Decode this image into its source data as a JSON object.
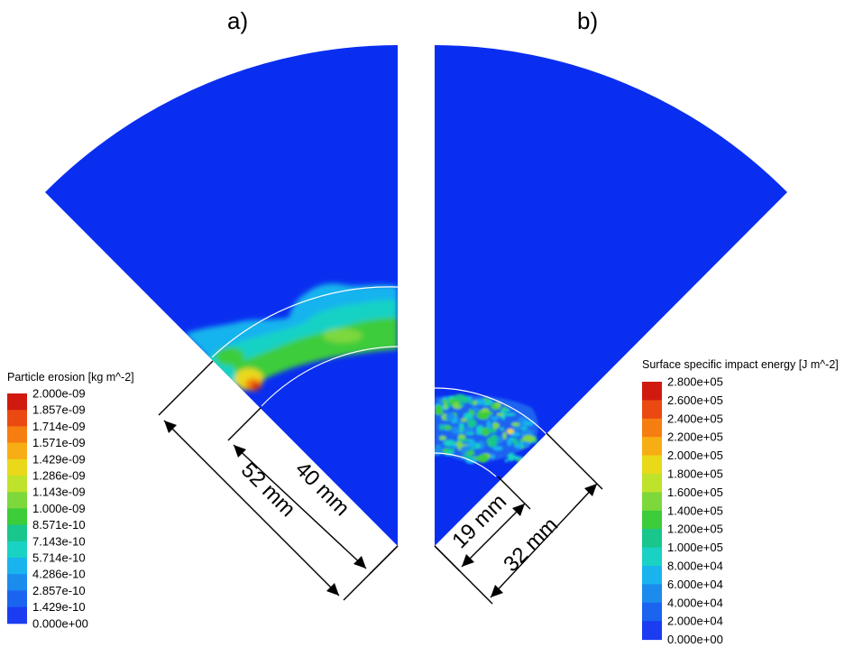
{
  "panels": [
    {
      "id": "a",
      "label": "a)",
      "dimensions": [
        {
          "text": "52 mm"
        },
        {
          "text": "40 mm"
        }
      ],
      "legend": {
        "title": "Particle erosion [kg m^-2]",
        "levels": [
          "2.000e-09",
          "1.857e-09",
          "1.714e-09",
          "1.571e-09",
          "1.429e-09",
          "1.286e-09",
          "1.143e-09",
          "1.000e-09",
          "8.571e-10",
          "7.143e-10",
          "5.714e-10",
          "4.286e-10",
          "2.857e-10",
          "1.429e-10",
          "0.000e+00"
        ]
      }
    },
    {
      "id": "b",
      "label": "b)",
      "dimensions": [
        {
          "text": "19 mm"
        },
        {
          "text": "32 mm"
        }
      ],
      "legend": {
        "title": "Surface specific impact energy [J m^-2]",
        "levels": [
          "2.800e+05",
          "2.600e+05",
          "2.400e+05",
          "2.200e+05",
          "2.000e+05",
          "1.800e+05",
          "1.600e+05",
          "1.400e+05",
          "1.200e+05",
          "1.000e+05",
          "8.000e+04",
          "6.000e+04",
          "4.000e+04",
          "2.000e+04",
          "0.000e+00"
        ]
      }
    }
  ],
  "colormap": [
    "#d01a10",
    "#ea4a12",
    "#f67e10",
    "#f7ae14",
    "#e9d91a",
    "#bfe22a",
    "#7dd83c",
    "#3dcc3a",
    "#19c68c",
    "#19d2c4",
    "#19b4ee",
    "#1b8cee",
    "#1b64f0",
    "#1b3cf0",
    "#0b24e6"
  ],
  "field_color": "#0a2ef0"
}
